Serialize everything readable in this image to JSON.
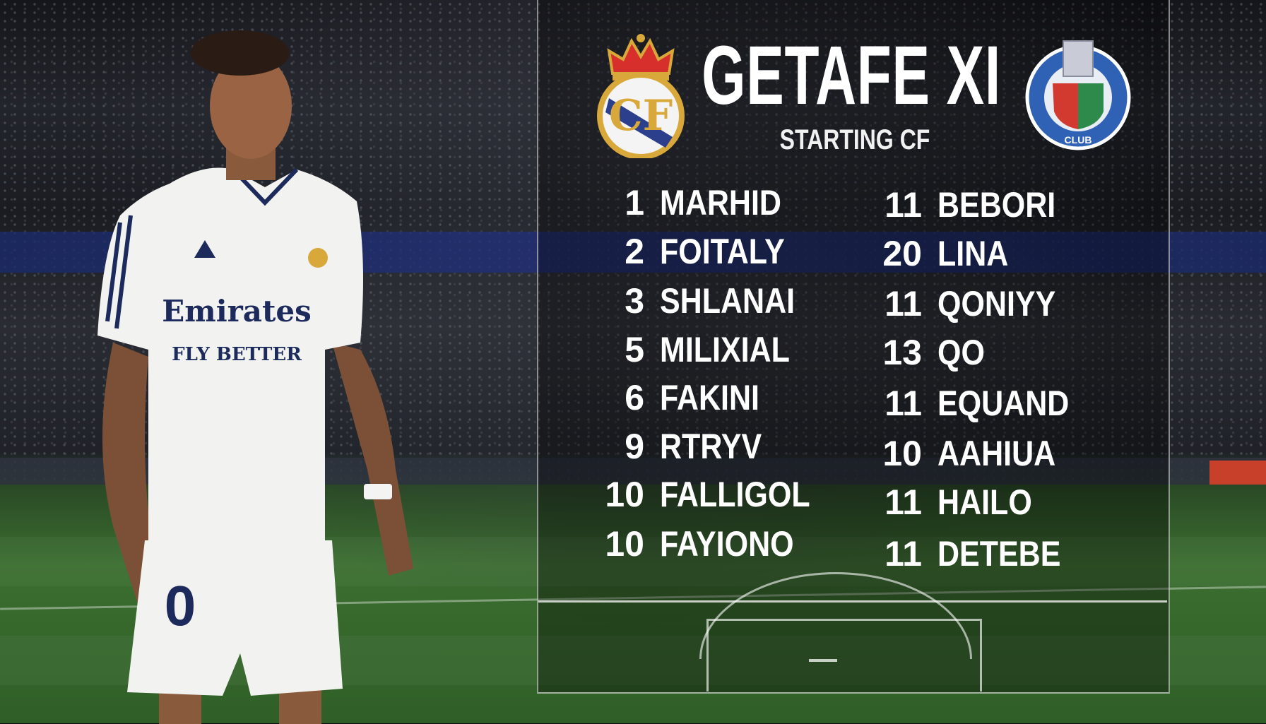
{
  "header": {
    "title": "GETAFE XI",
    "subtitle": "STARTING CF"
  },
  "crests": {
    "left": "real-madrid-crest",
    "right": "getafe-crest"
  },
  "lineup": {
    "left": [
      {
        "number": "1",
        "name": "MARHID"
      },
      {
        "number": "2",
        "name": "FOITALY"
      },
      {
        "number": "3",
        "name": "SHLANAI"
      },
      {
        "number": "5",
        "name": "MILIXIAL"
      },
      {
        "number": "6",
        "name": "FAKINI"
      },
      {
        "number": "9",
        "name": "RTRYV"
      },
      {
        "number": "10",
        "name": "FALLIGOL"
      },
      {
        "number": "10",
        "name": "FAYIONO"
      }
    ],
    "right": [
      {
        "number": "11",
        "name": "BEBORI"
      },
      {
        "number": "20",
        "name": "LINA"
      },
      {
        "number": "11",
        "name": "QONIYY"
      },
      {
        "number": "13",
        "name": "QO"
      },
      {
        "number": "11",
        "name": "EQUAND"
      },
      {
        "number": "10",
        "name": "AAHIUA"
      },
      {
        "number": "11",
        "name": "HAILO"
      },
      {
        "number": "11",
        "name": "DETEBE"
      }
    ]
  },
  "player": {
    "shirt_sponsor": "Emirates",
    "shirt_sponsor_sub": "FLY BETTER",
    "shorts_number": "0"
  },
  "colors": {
    "text": "#ffffff",
    "pitch": "#3b6e2f",
    "kit": "#f2f2f0",
    "kit_trim": "#1c2a5c"
  }
}
